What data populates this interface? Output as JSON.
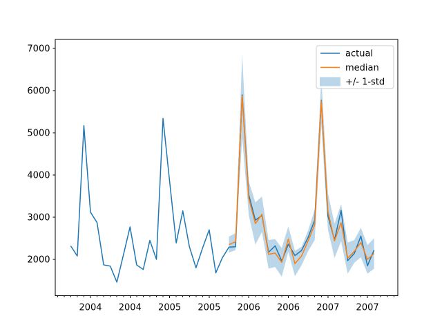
{
  "chart_data": {
    "type": "line",
    "title": "",
    "xlabel": "",
    "ylabel": "",
    "grid": false,
    "x_frequency": "monthly",
    "categories": [
      "2003-10",
      "2003-11",
      "2003-12",
      "2004-01",
      "2004-02",
      "2004-03",
      "2004-04",
      "2004-05",
      "2004-06",
      "2004-07",
      "2004-08",
      "2004-09",
      "2004-10",
      "2004-11",
      "2004-12",
      "2005-01",
      "2005-02",
      "2005-03",
      "2005-04",
      "2005-05",
      "2005-06",
      "2005-07",
      "2005-08",
      "2005-09",
      "2005-10",
      "2005-11",
      "2005-12",
      "2006-01",
      "2006-02",
      "2006-03",
      "2006-04",
      "2006-05",
      "2006-06",
      "2006-07",
      "2006-08",
      "2006-09",
      "2006-10",
      "2006-11",
      "2006-12",
      "2007-01",
      "2007-02",
      "2007-03",
      "2007-04",
      "2007-05",
      "2007-06",
      "2007-07",
      "2007-08"
    ],
    "series": [
      {
        "name": "actual",
        "color": "#1f77b4",
        "start_index": 0,
        "values": [
          2320,
          2080,
          5170,
          3120,
          2870,
          1870,
          1840,
          1460,
          2110,
          2770,
          1870,
          1760,
          2450,
          2000,
          5340,
          3850,
          2390,
          3150,
          2300,
          1800,
          2270,
          2700,
          1680,
          2040,
          2290,
          2300,
          5900,
          3530,
          2930,
          3040,
          2170,
          2320,
          1960,
          2360,
          2090,
          2210,
          2520,
          2930,
          5770,
          3030,
          2460,
          3160,
          1970,
          2140,
          2550,
          1850,
          2220
        ]
      },
      {
        "name": "median",
        "color": "#ff7f0e",
        "start_index": 24,
        "values": [
          2350,
          2420,
          5870,
          3450,
          2850,
          3070,
          2120,
          2150,
          1930,
          2480,
          1900,
          2080,
          2440,
          2820,
          5750,
          3140,
          2440,
          2870,
          2030,
          2190,
          2400,
          2000,
          2140
        ]
      }
    ],
    "band": {
      "name": "+/- 1-std",
      "color": "#1f77b4",
      "opacity": 0.3,
      "start_index": 24,
      "center_series": "median",
      "std": [
        190,
        200,
        980,
        400,
        500,
        420,
        340,
        330,
        340,
        300,
        300,
        220,
        245,
        360,
        550,
        430,
        410,
        440,
        370,
        270,
        350,
        340,
        360
      ]
    },
    "yticks": [
      "2000",
      "3000",
      "4000",
      "5000",
      "6000",
      "7000"
    ],
    "ylim": [
      1130,
      7210
    ],
    "xticks": [
      {
        "label": "2004",
        "month_index": 3
      },
      {
        "label": "2004",
        "month_index": 9
      },
      {
        "label": "2005",
        "month_index": 15
      },
      {
        "label": "2005",
        "month_index": 21
      },
      {
        "label": "2006",
        "month_index": 27
      },
      {
        "label": "2006",
        "month_index": 33
      },
      {
        "label": "2007",
        "month_index": 39
      },
      {
        "label": "2007",
        "month_index": 45
      }
    ],
    "legend": {
      "position": "upper right",
      "entries": [
        {
          "label": "actual",
          "type": "line",
          "color": "#1f77b4"
        },
        {
          "label": "median",
          "type": "line",
          "color": "#ff7f0e"
        },
        {
          "label": "+/- 1-std",
          "type": "patch",
          "color": "#1f77b4",
          "opacity": 0.3
        }
      ]
    }
  }
}
